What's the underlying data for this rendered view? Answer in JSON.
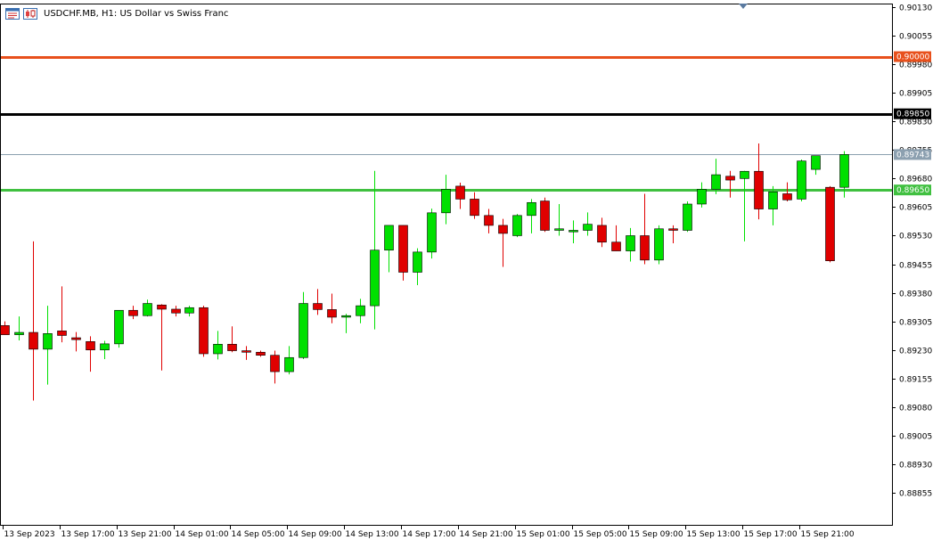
{
  "window": {
    "symbol": "USDCHF.MB",
    "timeframe": "H1",
    "description": "US Dollar vs Swiss Franc",
    "title": "USDCHF.MB, H1:  US Dollar vs Swiss Franc"
  },
  "toolbar": {
    "icons": [
      "chart-window-icon",
      "candles-chart-icon"
    ]
  },
  "colors": {
    "bull": "#00e000",
    "bear": "#e00000",
    "axis": "#000000",
    "grid": "#000000",
    "current_price_line": "#8ca0b0"
  },
  "horizontal_lines": [
    {
      "name": "level-09000",
      "price": 0.9,
      "label": "0.90000",
      "color": "#e8501c"
    },
    {
      "name": "level-08985",
      "price": 0.8985,
      "label": "0.89850",
      "color": "#000000"
    },
    {
      "name": "level-08965",
      "price": 0.8965,
      "label": "0.89650",
      "color": "#40c040"
    }
  ],
  "current_price": {
    "price": 0.89743,
    "label": "0.89743"
  },
  "chart_data": {
    "type": "candlestick",
    "symbol": "USDCHF.MB",
    "timeframe": "H1",
    "ylim": [
      0.88813,
      0.9013
    ],
    "y_ticks": [
      "0.90130",
      "0.90055",
      "0.89980",
      "0.89905",
      "0.89830",
      "0.89755",
      "0.89680",
      "0.89605",
      "0.89530",
      "0.89455",
      "0.89380",
      "0.89305",
      "0.89230",
      "0.89155",
      "0.89080",
      "0.89005",
      "0.88930",
      "0.88855"
    ],
    "x_ticks": [
      "13 Sep 2023",
      "13 Sep 17:00",
      "13 Sep 21:00",
      "14 Sep 01:00",
      "14 Sep 05:00",
      "14 Sep 09:00",
      "14 Sep 13:00",
      "14 Sep 17:00",
      "14 Sep 21:00",
      "15 Sep 01:00",
      "15 Sep 05:00",
      "15 Sep 09:00",
      "15 Sep 13:00",
      "15 Sep 17:00",
      "15 Sep 21:00"
    ],
    "candles": [
      {
        "o": 0.89294,
        "h": 0.89305,
        "l": 0.8927,
        "c": 0.8927
      },
      {
        "o": 0.8927,
        "h": 0.89318,
        "l": 0.89255,
        "c": 0.89276
      },
      {
        "o": 0.89276,
        "h": 0.89515,
        "l": 0.89097,
        "c": 0.89232
      },
      {
        "o": 0.89232,
        "h": 0.89346,
        "l": 0.89139,
        "c": 0.89273
      },
      {
        "o": 0.8928,
        "h": 0.89397,
        "l": 0.8925,
        "c": 0.89268
      },
      {
        "o": 0.89262,
        "h": 0.89277,
        "l": 0.89226,
        "c": 0.89257
      },
      {
        "o": 0.89252,
        "h": 0.89266,
        "l": 0.89173,
        "c": 0.8923
      },
      {
        "o": 0.8923,
        "h": 0.89254,
        "l": 0.89206,
        "c": 0.89246
      },
      {
        "o": 0.89246,
        "h": 0.89334,
        "l": 0.89236,
        "c": 0.89334
      },
      {
        "o": 0.89334,
        "h": 0.89346,
        "l": 0.89311,
        "c": 0.8932
      },
      {
        "o": 0.8932,
        "h": 0.89362,
        "l": 0.89318,
        "c": 0.89352
      },
      {
        "o": 0.89348,
        "h": 0.8935,
        "l": 0.89176,
        "c": 0.89337
      },
      {
        "o": 0.89337,
        "h": 0.89346,
        "l": 0.89318,
        "c": 0.89327
      },
      {
        "o": 0.89327,
        "h": 0.89346,
        "l": 0.89318,
        "c": 0.89341
      },
      {
        "o": 0.89341,
        "h": 0.89346,
        "l": 0.89212,
        "c": 0.8922
      },
      {
        "o": 0.8922,
        "h": 0.8928,
        "l": 0.89205,
        "c": 0.89245
      },
      {
        "o": 0.89245,
        "h": 0.89292,
        "l": 0.89224,
        "c": 0.89228
      },
      {
        "o": 0.89228,
        "h": 0.8924,
        "l": 0.89204,
        "c": 0.89224
      },
      {
        "o": 0.89224,
        "h": 0.89228,
        "l": 0.89212,
        "c": 0.89216
      },
      {
        "o": 0.89216,
        "h": 0.89228,
        "l": 0.89142,
        "c": 0.89173
      },
      {
        "o": 0.89173,
        "h": 0.8924,
        "l": 0.89166,
        "c": 0.8921
      },
      {
        "o": 0.8921,
        "h": 0.89382,
        "l": 0.89206,
        "c": 0.89352
      },
      {
        "o": 0.89352,
        "h": 0.8939,
        "l": 0.89322,
        "c": 0.89336
      },
      {
        "o": 0.89336,
        "h": 0.89378,
        "l": 0.893,
        "c": 0.89316
      },
      {
        "o": 0.89316,
        "h": 0.89325,
        "l": 0.89274,
        "c": 0.8932
      },
      {
        "o": 0.8932,
        "h": 0.89364,
        "l": 0.893,
        "c": 0.89346
      },
      {
        "o": 0.89346,
        "h": 0.897,
        "l": 0.89284,
        "c": 0.89492
      },
      {
        "o": 0.89492,
        "h": 0.89557,
        "l": 0.89434,
        "c": 0.89557
      },
      {
        "o": 0.89557,
        "h": 0.89557,
        "l": 0.89412,
        "c": 0.89434
      },
      {
        "o": 0.89434,
        "h": 0.89497,
        "l": 0.894,
        "c": 0.89487
      },
      {
        "o": 0.89487,
        "h": 0.89601,
        "l": 0.8947,
        "c": 0.8959
      },
      {
        "o": 0.8959,
        "h": 0.8969,
        "l": 0.8956,
        "c": 0.89652
      },
      {
        "o": 0.8966,
        "h": 0.89669,
        "l": 0.896,
        "c": 0.89626
      },
      {
        "o": 0.89626,
        "h": 0.89644,
        "l": 0.89574,
        "c": 0.89583
      },
      {
        "o": 0.89583,
        "h": 0.896,
        "l": 0.89536,
        "c": 0.89557
      },
      {
        "o": 0.89557,
        "h": 0.89574,
        "l": 0.89448,
        "c": 0.89536
      },
      {
        "o": 0.8953,
        "h": 0.89587,
        "l": 0.89526,
        "c": 0.89583
      },
      {
        "o": 0.89583,
        "h": 0.89626,
        "l": 0.89536,
        "c": 0.89617
      },
      {
        "o": 0.89621,
        "h": 0.8963,
        "l": 0.8954,
        "c": 0.89544
      },
      {
        "o": 0.89544,
        "h": 0.89613,
        "l": 0.8953,
        "c": 0.89548
      },
      {
        "o": 0.8954,
        "h": 0.8957,
        "l": 0.8951,
        "c": 0.89544
      },
      {
        "o": 0.89544,
        "h": 0.89591,
        "l": 0.8953,
        "c": 0.8956
      },
      {
        "o": 0.89557,
        "h": 0.89577,
        "l": 0.895,
        "c": 0.89513
      },
      {
        "o": 0.89513,
        "h": 0.89557,
        "l": 0.8949,
        "c": 0.8949
      },
      {
        "o": 0.8949,
        "h": 0.8955,
        "l": 0.89462,
        "c": 0.8953
      },
      {
        "o": 0.8953,
        "h": 0.8964,
        "l": 0.89455,
        "c": 0.89466
      },
      {
        "o": 0.89466,
        "h": 0.89557,
        "l": 0.89455,
        "c": 0.89548
      },
      {
        "o": 0.89548,
        "h": 0.89557,
        "l": 0.8951,
        "c": 0.89544
      },
      {
        "o": 0.89544,
        "h": 0.8962,
        "l": 0.8954,
        "c": 0.89613
      },
      {
        "o": 0.89613,
        "h": 0.8967,
        "l": 0.89604,
        "c": 0.89652
      },
      {
        "o": 0.89652,
        "h": 0.89732,
        "l": 0.89639,
        "c": 0.8969
      },
      {
        "o": 0.89686,
        "h": 0.897,
        "l": 0.8963,
        "c": 0.89676
      },
      {
        "o": 0.8968,
        "h": 0.897,
        "l": 0.89515,
        "c": 0.89699
      },
      {
        "o": 0.89699,
        "h": 0.89772,
        "l": 0.89573,
        "c": 0.896
      },
      {
        "o": 0.896,
        "h": 0.8966,
        "l": 0.89557,
        "c": 0.89645
      },
      {
        "o": 0.8964,
        "h": 0.8967,
        "l": 0.8962,
        "c": 0.89624
      },
      {
        "o": 0.89626,
        "h": 0.8973,
        "l": 0.8962,
        "c": 0.89726
      },
      {
        "o": 0.89704,
        "h": 0.8974,
        "l": 0.8969,
        "c": 0.8974
      },
      {
        "o": 0.89657,
        "h": 0.8966,
        "l": 0.8946,
        "c": 0.89464
      },
      {
        "o": 0.89657,
        "h": 0.89752,
        "l": 0.8963,
        "c": 0.89743
      }
    ]
  }
}
